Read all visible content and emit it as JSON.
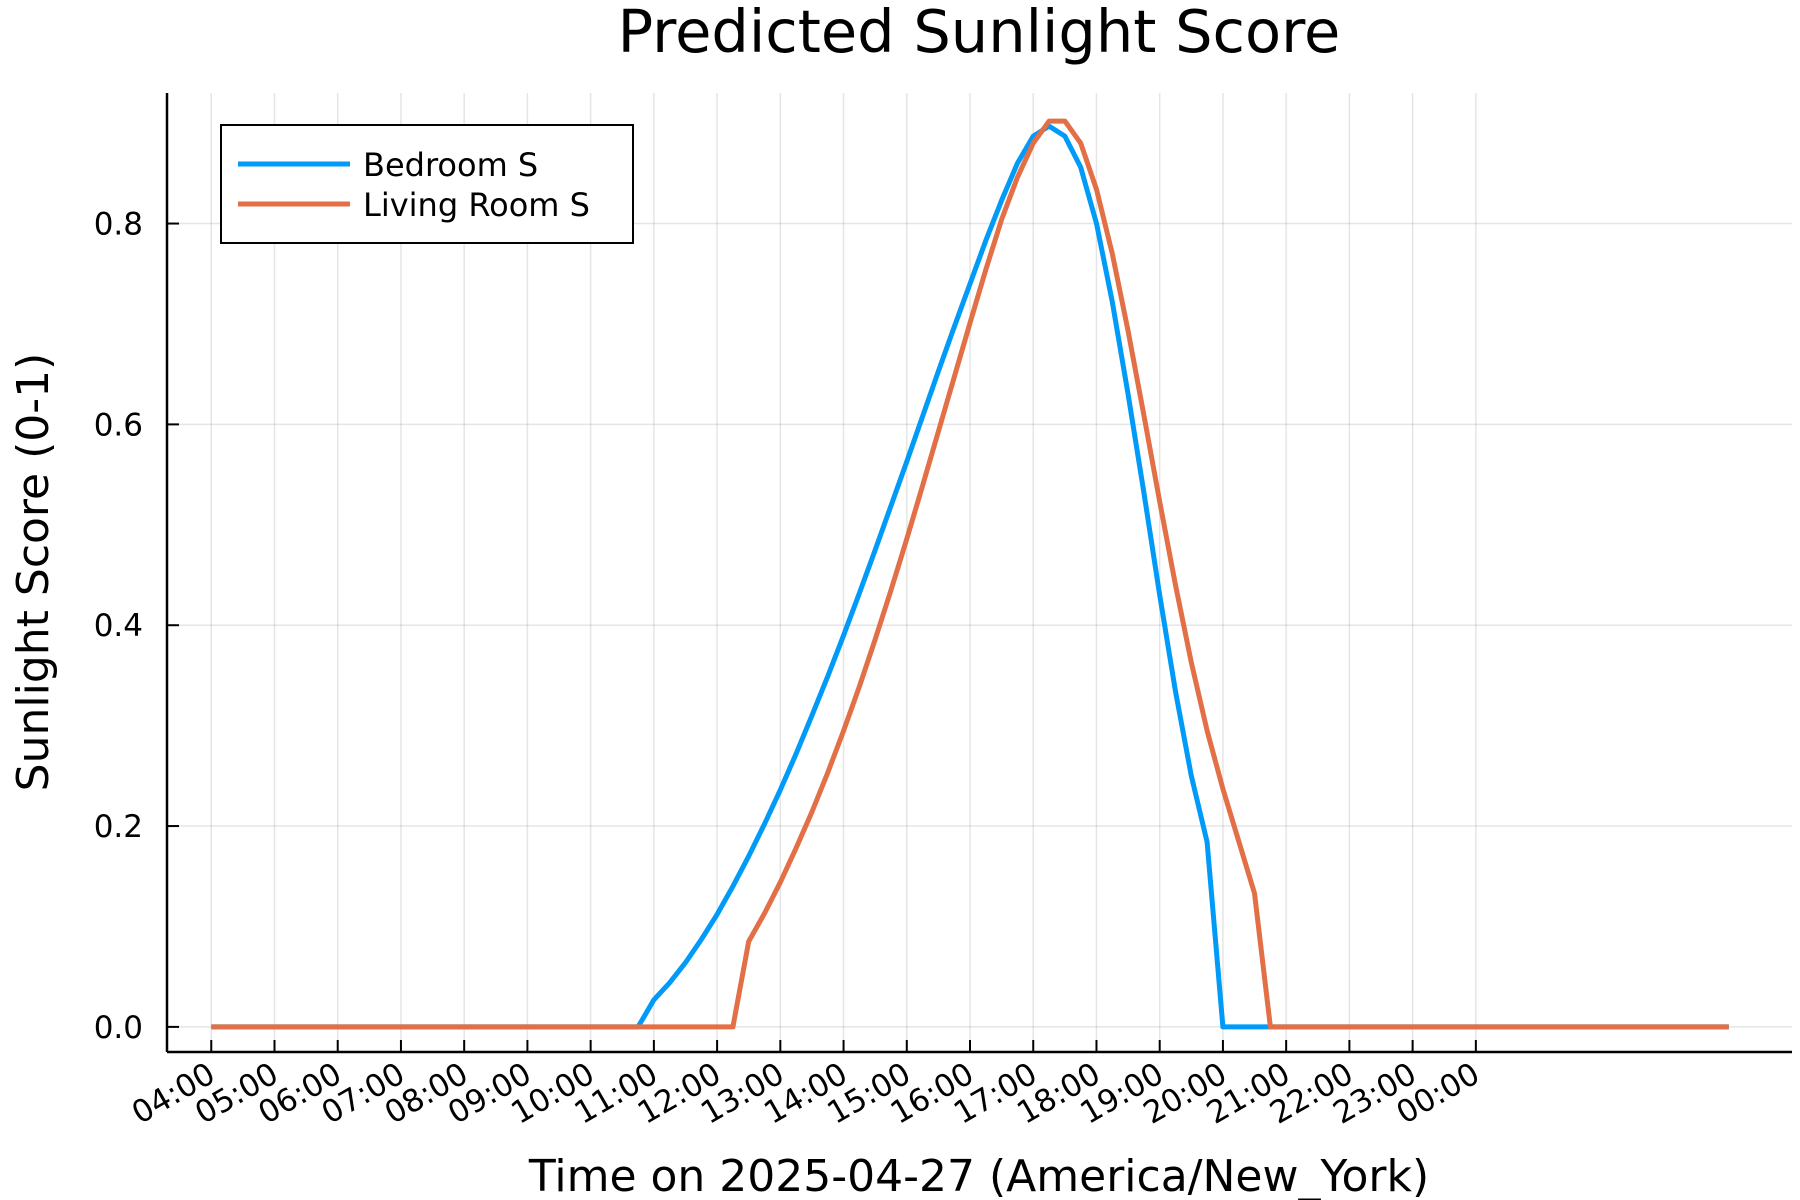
{
  "chart_data": {
    "type": "line",
    "title": "Predicted Sunlight Score",
    "xlabel": "Time on 2025-04-27 (America/New_York)",
    "ylabel": "Sunlight Score (0-1)",
    "x_unit": "hours",
    "xlim": [
      3.3,
      29.0
    ],
    "ylim": [
      -0.025,
      0.93
    ],
    "x_ticks": [
      {
        "value": 4,
        "label": "04:00"
      },
      {
        "value": 5,
        "label": "05:00"
      },
      {
        "value": 6,
        "label": "06:00"
      },
      {
        "value": 7,
        "label": "07:00"
      },
      {
        "value": 8,
        "label": "08:00"
      },
      {
        "value": 9,
        "label": "09:00"
      },
      {
        "value": 10,
        "label": "10:00"
      },
      {
        "value": 11,
        "label": "11:00"
      },
      {
        "value": 12,
        "label": "12:00"
      },
      {
        "value": 13,
        "label": "13:00"
      },
      {
        "value": 14,
        "label": "14:00"
      },
      {
        "value": 15,
        "label": "15:00"
      },
      {
        "value": 16,
        "label": "16:00"
      },
      {
        "value": 17,
        "label": "17:00"
      },
      {
        "value": 18,
        "label": "18:00"
      },
      {
        "value": 19,
        "label": "19:00"
      },
      {
        "value": 20,
        "label": "20:00"
      },
      {
        "value": 21,
        "label": "21:00"
      },
      {
        "value": 22,
        "label": "22:00"
      },
      {
        "value": 23,
        "label": "23:00"
      },
      {
        "value": 24,
        "label": "00:00"
      }
    ],
    "y_ticks": [
      {
        "value": 0.0,
        "label": "0.0"
      },
      {
        "value": 0.2,
        "label": "0.2"
      },
      {
        "value": 0.4,
        "label": "0.4"
      },
      {
        "value": 0.6,
        "label": "0.6"
      },
      {
        "value": 0.8,
        "label": "0.8"
      }
    ],
    "grid": true,
    "legend_position": "top-left",
    "series": [
      {
        "name": "Bedroom S",
        "color": "#009AF9",
        "points": [
          [
            4.0,
            0.0
          ],
          [
            10.75,
            0.0
          ],
          [
            11.0,
            0.027
          ],
          [
            11.25,
            0.044
          ],
          [
            11.5,
            0.064
          ],
          [
            11.75,
            0.087
          ],
          [
            12.0,
            0.112
          ],
          [
            12.25,
            0.14
          ],
          [
            12.5,
            0.17
          ],
          [
            12.75,
            0.202
          ],
          [
            13.0,
            0.236
          ],
          [
            13.25,
            0.272
          ],
          [
            13.5,
            0.31
          ],
          [
            13.75,
            0.349
          ],
          [
            14.0,
            0.39
          ],
          [
            14.25,
            0.432
          ],
          [
            14.5,
            0.475
          ],
          [
            14.75,
            0.519
          ],
          [
            15.0,
            0.563
          ],
          [
            15.25,
            0.608
          ],
          [
            15.5,
            0.653
          ],
          [
            15.75,
            0.697
          ],
          [
            16.0,
            0.74
          ],
          [
            16.25,
            0.783
          ],
          [
            16.5,
            0.823
          ],
          [
            16.75,
            0.86
          ],
          [
            17.0,
            0.887
          ],
          [
            17.25,
            0.897
          ],
          [
            17.5,
            0.887
          ],
          [
            17.75,
            0.856
          ],
          [
            18.0,
            0.8
          ],
          [
            18.25,
            0.722
          ],
          [
            18.5,
            0.63
          ],
          [
            18.75,
            0.532
          ],
          [
            19.0,
            0.43
          ],
          [
            19.25,
            0.334
          ],
          [
            19.5,
            0.25
          ],
          [
            19.75,
            0.184
          ],
          [
            20.0,
            0.0
          ],
          [
            20.75,
            0.0
          ],
          [
            21.0,
            0.0
          ],
          [
            28.0,
            0.0
          ]
        ]
      },
      {
        "name": "Living Room S",
        "color": "#E26F46",
        "points": [
          [
            4.0,
            0.0
          ],
          [
            12.25,
            0.0
          ],
          [
            12.5,
            0.085
          ],
          [
            12.75,
            0.113
          ],
          [
            13.0,
            0.144
          ],
          [
            13.25,
            0.178
          ],
          [
            13.5,
            0.214
          ],
          [
            13.75,
            0.253
          ],
          [
            14.0,
            0.295
          ],
          [
            14.25,
            0.339
          ],
          [
            14.5,
            0.386
          ],
          [
            14.75,
            0.435
          ],
          [
            15.0,
            0.486
          ],
          [
            15.25,
            0.539
          ],
          [
            15.5,
            0.593
          ],
          [
            15.75,
            0.647
          ],
          [
            16.0,
            0.701
          ],
          [
            16.25,
            0.754
          ],
          [
            16.5,
            0.804
          ],
          [
            16.75,
            0.846
          ],
          [
            17.0,
            0.88
          ],
          [
            17.25,
            0.902
          ],
          [
            17.5,
            0.902
          ],
          [
            17.75,
            0.88
          ],
          [
            18.0,
            0.834
          ],
          [
            18.25,
            0.77
          ],
          [
            18.5,
            0.693
          ],
          [
            18.75,
            0.609
          ],
          [
            19.0,
            0.523
          ],
          [
            19.25,
            0.44
          ],
          [
            19.5,
            0.363
          ],
          [
            19.75,
            0.295
          ],
          [
            20.0,
            0.237
          ],
          [
            20.25,
            0.185
          ],
          [
            20.5,
            0.133
          ],
          [
            20.75,
            0.0
          ],
          [
            28.0,
            0.0
          ]
        ]
      }
    ]
  }
}
